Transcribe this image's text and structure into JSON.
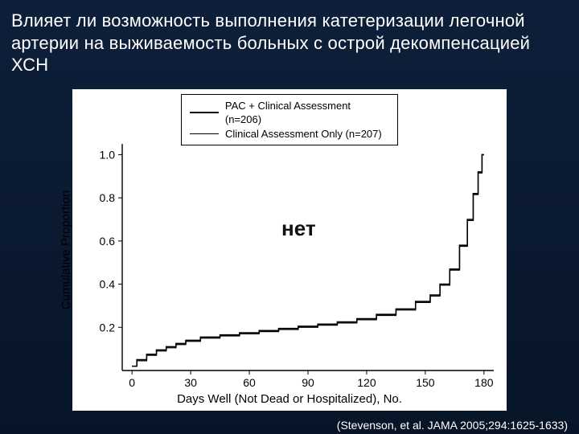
{
  "title": "Влияет ли возможность выполнения катетеризации легочной артерии на выживаемость больных с острой декомпенсацией ХСН",
  "citation": "(Stevenson, et al.  JAMA 2005;294:1625-1633)",
  "annotation": "нет",
  "chart": {
    "type": "line",
    "y_axis": {
      "label": "Cumulative Proportion",
      "ticks": [
        0.2,
        0.4,
        0.6,
        0.8,
        1.0
      ],
      "lim": [
        0.0,
        1.05
      ],
      "label_fontsize": 15,
      "tick_fontsize": 14
    },
    "x_axis": {
      "label": "Days Well (Not Dead or Hospitalized), No.",
      "ticks": [
        0,
        30,
        60,
        90,
        120,
        150,
        180
      ],
      "lim": [
        -5,
        185
      ],
      "label_fontsize": 15,
      "tick_fontsize": 14
    },
    "legend": {
      "items": [
        {
          "label": "PAC + Clinical Assessment (n=206)",
          "dash": "bold"
        },
        {
          "label": "Clinical Assessment Only (n=207)",
          "dash": "thin"
        }
      ],
      "border_color": "#000000"
    },
    "series": [
      {
        "name": "pac_plus_clinical",
        "color": "#000000",
        "width": 1.6,
        "x": [
          0,
          5,
          10,
          15,
          20,
          25,
          30,
          40,
          50,
          60,
          70,
          80,
          90,
          100,
          110,
          120,
          130,
          140,
          150,
          155,
          160,
          165,
          170,
          173,
          176,
          178,
          180
        ],
        "y": [
          0.02,
          0.05,
          0.075,
          0.095,
          0.11,
          0.125,
          0.14,
          0.155,
          0.165,
          0.175,
          0.185,
          0.195,
          0.205,
          0.215,
          0.225,
          0.24,
          0.26,
          0.285,
          0.32,
          0.35,
          0.4,
          0.47,
          0.58,
          0.7,
          0.82,
          0.92,
          1.0
        ]
      },
      {
        "name": "clinical_only",
        "color": "#000000",
        "width": 1.2,
        "x": [
          0,
          5,
          10,
          15,
          20,
          25,
          30,
          40,
          50,
          60,
          70,
          80,
          90,
          100,
          110,
          120,
          130,
          140,
          150,
          155,
          160,
          165,
          170,
          173,
          176,
          178,
          180
        ],
        "y": [
          0.02,
          0.045,
          0.07,
          0.09,
          0.105,
          0.12,
          0.135,
          0.15,
          0.16,
          0.17,
          0.18,
          0.19,
          0.2,
          0.21,
          0.22,
          0.235,
          0.255,
          0.28,
          0.315,
          0.345,
          0.395,
          0.465,
          0.575,
          0.695,
          0.815,
          0.915,
          1.0
        ]
      }
    ],
    "colors": {
      "background": "#ffffff",
      "axis": "#000000",
      "text": "#000000"
    }
  },
  "slide_bg": "#0a1a33",
  "title_color": "#ffffff"
}
